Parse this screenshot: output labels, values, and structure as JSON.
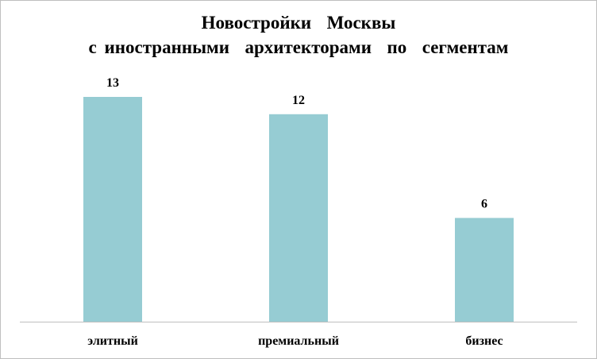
{
  "chart_data": {
    "type": "bar",
    "title_lines": [
      "Новостройки  Москвы",
      "с иностранными  архитекторами  по  сегментам"
    ],
    "categories": [
      "элитный",
      "премиальный",
      "бизнес"
    ],
    "values": [
      13,
      12,
      6
    ],
    "ylim": [
      0,
      13
    ],
    "bar_color": "#96ccd3",
    "axis_color": "#bfbfbf",
    "grid": false,
    "legend": "none",
    "data_labels": true,
    "xlabel": "",
    "ylabel": ""
  }
}
